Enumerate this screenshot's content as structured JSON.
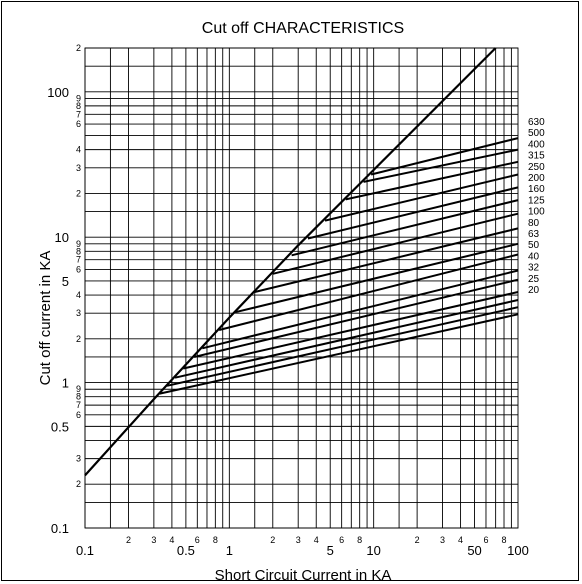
{
  "chart_data": {
    "type": "line",
    "title": "Cut off CHARACTERISTICS",
    "xlabel": "Short Circuit Current in KA",
    "ylabel": "Cut off current in KA",
    "x_scale": "log",
    "y_scale": "log",
    "xlim": [
      0.1,
      100
    ],
    "ylim": [
      0.1,
      200
    ],
    "grid": true,
    "x_major_ticks": [
      {
        "value": 0.1,
        "label": "0.1"
      },
      {
        "value": 0.5,
        "label": "0.5"
      },
      {
        "value": 1,
        "label": "1"
      },
      {
        "value": 5,
        "label": "5"
      },
      {
        "value": 10,
        "label": "10"
      },
      {
        "value": 50,
        "label": "50"
      },
      {
        "value": 100,
        "label": "100"
      }
    ],
    "x_minor_ticks": [
      {
        "value": 0.2,
        "label": "2"
      },
      {
        "value": 0.3,
        "label": "3"
      },
      {
        "value": 0.4,
        "label": "4"
      },
      {
        "value": 0.6,
        "label": "6"
      },
      {
        "value": 0.8,
        "label": "8"
      },
      {
        "value": 2,
        "label": "2"
      },
      {
        "value": 3,
        "label": "3"
      },
      {
        "value": 4,
        "label": "4"
      },
      {
        "value": 6,
        "label": "6"
      },
      {
        "value": 8,
        "label": "8"
      },
      {
        "value": 20,
        "label": "2"
      },
      {
        "value": 30,
        "label": "3"
      },
      {
        "value": 40,
        "label": "4"
      },
      {
        "value": 60,
        "label": "6"
      },
      {
        "value": 80,
        "label": "8"
      }
    ],
    "y_major_ticks": [
      {
        "value": 0.1,
        "label": "0.1"
      },
      {
        "value": 0.5,
        "label": "0.5"
      },
      {
        "value": 1,
        "label": "1"
      },
      {
        "value": 5,
        "label": "5"
      },
      {
        "value": 10,
        "label": "10"
      },
      {
        "value": 100,
        "label": "100"
      }
    ],
    "y_minor_ticks": [
      {
        "value": 0.2,
        "label": "2"
      },
      {
        "value": 0.3,
        "label": "3"
      },
      {
        "value": 0.6,
        "label": "6"
      },
      {
        "value": 0.7,
        "label": "7"
      },
      {
        "value": 0.8,
        "label": "8"
      },
      {
        "value": 0.9,
        "label": "9"
      },
      {
        "value": 2,
        "label": "2"
      },
      {
        "value": 3,
        "label": "3"
      },
      {
        "value": 4,
        "label": "4"
      },
      {
        "value": 6,
        "label": "6"
      },
      {
        "value": 7,
        "label": "7"
      },
      {
        "value": 8,
        "label": "8"
      },
      {
        "value": 9,
        "label": "9"
      },
      {
        "value": 20,
        "label": "2"
      },
      {
        "value": 30,
        "label": "3"
      },
      {
        "value": 40,
        "label": "4"
      },
      {
        "value": 60,
        "label": "6"
      },
      {
        "value": 70,
        "label": "7"
      },
      {
        "value": 80,
        "label": "8"
      },
      {
        "value": 90,
        "label": "9"
      },
      {
        "value": 200,
        "label": "2"
      }
    ],
    "envelope": {
      "points": [
        [
          0.1,
          0.23
        ],
        [
          0.3,
          0.77
        ],
        [
          1,
          2.8
        ],
        [
          3,
          8.8
        ],
        [
          10,
          29
        ],
        [
          70,
          200
        ]
      ]
    },
    "series": [
      {
        "name": "20",
        "points": [
          [
            0.33,
            0.84
          ],
          [
            100,
            2.95
          ]
        ]
      },
      {
        "name": "25",
        "points": [
          [
            0.37,
            0.95
          ],
          [
            100,
            3.3
          ]
        ]
      },
      {
        "name": "32",
        "points": [
          [
            0.42,
            1.08
          ],
          [
            100,
            3.7
          ]
        ]
      },
      {
        "name": "40",
        "points": [
          [
            0.48,
            1.25
          ],
          [
            100,
            4.2
          ]
        ]
      },
      {
        "name": "50",
        "points": [
          [
            0.57,
            1.5
          ],
          [
            100,
            5.1
          ]
        ]
      },
      {
        "name": "63",
        "points": [
          [
            0.65,
            1.72
          ],
          [
            100,
            5.9
          ]
        ]
      },
      {
        "name": "80",
        "points": [
          [
            0.85,
            2.3
          ],
          [
            100,
            7.6
          ]
        ]
      },
      {
        "name": "100",
        "points": [
          [
            1.1,
            3.05
          ],
          [
            100,
            9.0
          ]
        ]
      },
      {
        "name": "125",
        "points": [
          [
            1.5,
            4.2
          ],
          [
            100,
            11.5
          ]
        ]
      },
      {
        "name": "160",
        "points": [
          [
            2.0,
            5.6
          ],
          [
            100,
            14.5
          ]
        ]
      },
      {
        "name": "200",
        "points": [
          [
            2.7,
            7.5
          ],
          [
            100,
            18.0
          ]
        ]
      },
      {
        "name": "250",
        "points": [
          [
            3.5,
            9.8
          ],
          [
            100,
            22.0
          ]
        ]
      },
      {
        "name": "315",
        "points": [
          [
            4.6,
            13.0
          ],
          [
            100,
            27.0
          ]
        ]
      },
      {
        "name": "400",
        "points": [
          [
            6.4,
            18.2
          ],
          [
            100,
            33.0
          ]
        ]
      },
      {
        "name": "500",
        "points": [
          [
            8.5,
            24.0
          ],
          [
            100,
            40.0
          ]
        ]
      },
      {
        "name": "630",
        "points": [
          [
            9.6,
            27.0
          ],
          [
            100,
            48.0
          ]
        ]
      }
    ]
  }
}
